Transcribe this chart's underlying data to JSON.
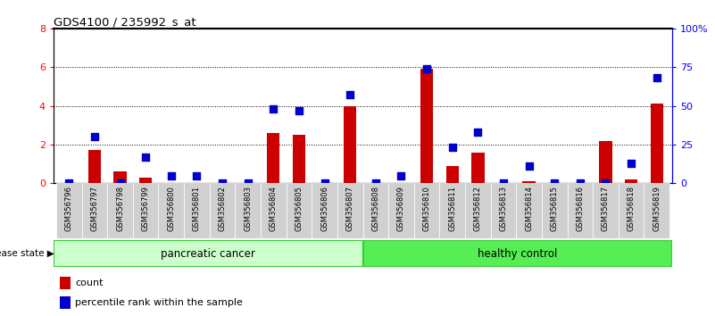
{
  "title": "GDS4100 / 235992_s_at",
  "samples": [
    "GSM356796",
    "GSM356797",
    "GSM356798",
    "GSM356799",
    "GSM356800",
    "GSM356801",
    "GSM356802",
    "GSM356803",
    "GSM356804",
    "GSM356805",
    "GSM356806",
    "GSM356807",
    "GSM356808",
    "GSM356809",
    "GSM356810",
    "GSM356811",
    "GSM356812",
    "GSM356813",
    "GSM356814",
    "GSM356815",
    "GSM356816",
    "GSM356817",
    "GSM356818",
    "GSM356819"
  ],
  "count": [
    0,
    1.7,
    0.6,
    0.3,
    0,
    0,
    0,
    0,
    2.6,
    2.5,
    0,
    4.0,
    0,
    0,
    5.9,
    0.9,
    1.6,
    0,
    0.1,
    0,
    0,
    2.2,
    0.2,
    4.1
  ],
  "percentile": [
    0,
    30,
    0,
    17,
    5,
    5,
    0,
    0,
    48,
    47,
    0,
    57,
    0,
    5,
    74,
    23,
    33,
    0,
    11,
    0,
    0,
    0,
    13,
    68
  ],
  "group": [
    "pancreatic cancer",
    "pancreatic cancer",
    "pancreatic cancer",
    "pancreatic cancer",
    "pancreatic cancer",
    "pancreatic cancer",
    "pancreatic cancer",
    "pancreatic cancer",
    "pancreatic cancer",
    "pancreatic cancer",
    "pancreatic cancer",
    "pancreatic cancer",
    "healthy control",
    "healthy control",
    "healthy control",
    "healthy control",
    "healthy control",
    "healthy control",
    "healthy control",
    "healthy control",
    "healthy control",
    "healthy control",
    "healthy control",
    "healthy control"
  ],
  "ylim_left": [
    0,
    8
  ],
  "ylim_right": [
    0,
    100
  ],
  "yticks_left": [
    0,
    2,
    4,
    6,
    8
  ],
  "ytick_labels_left": [
    "0",
    "2",
    "4",
    "6",
    "8"
  ],
  "yticks_right": [
    0,
    25,
    50,
    75,
    100
  ],
  "ytick_labels_right": [
    "0",
    "25",
    "50",
    "75",
    "100%"
  ],
  "bar_color": "#cc0000",
  "dot_color": "#0000cc",
  "pancreatic_color_light": "#ccffcc",
  "pancreatic_color_dark": "#33cc33",
  "healthy_color_light": "#55ee55",
  "healthy_color_dark": "#33cc33",
  "tick_bg_color": "#d0d0d0",
  "bar_width": 0.5,
  "dot_size": 28
}
